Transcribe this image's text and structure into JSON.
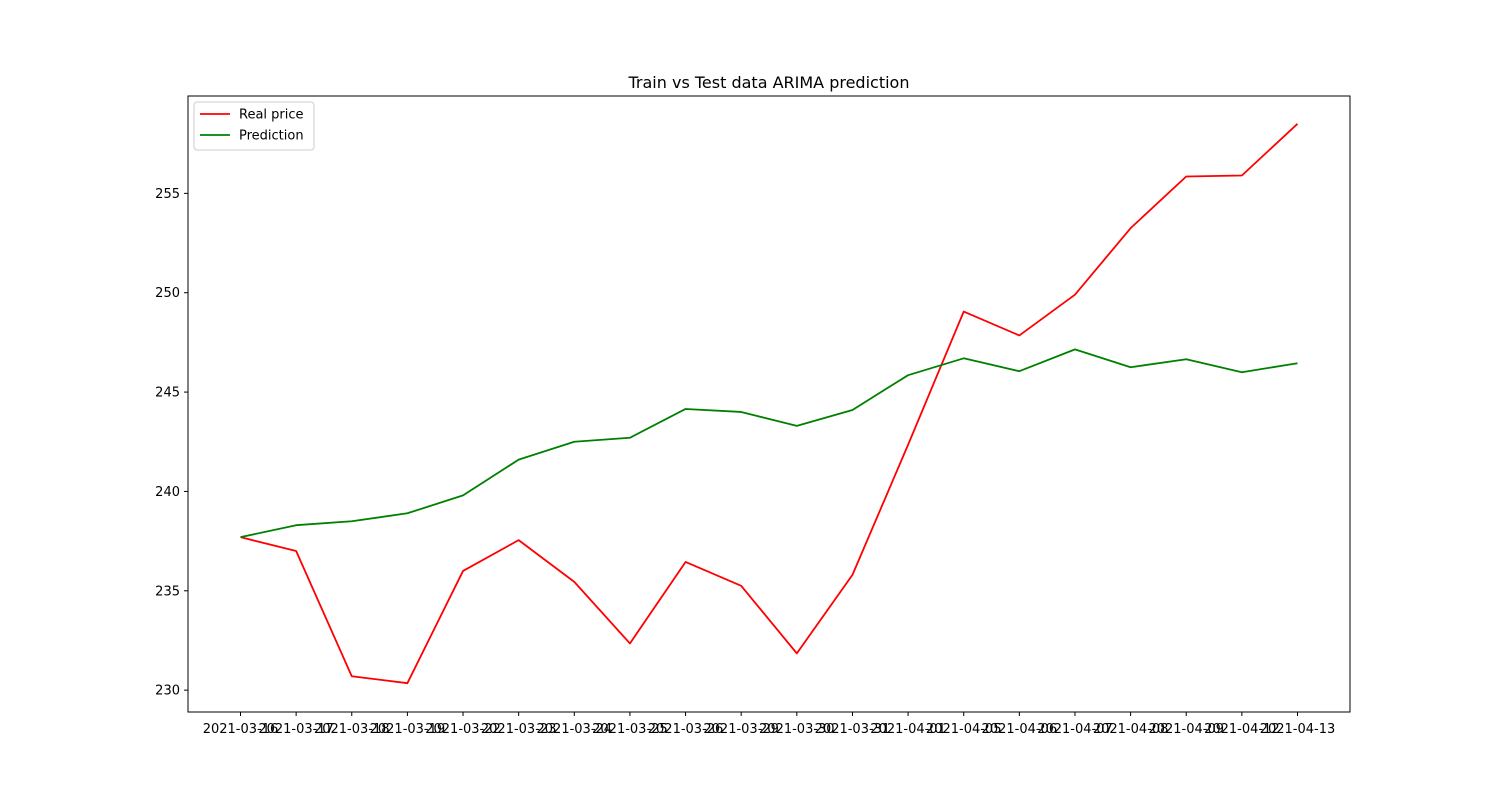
{
  "chart_data": {
    "type": "line",
    "title": "Train vs Test data ARIMA prediction",
    "xlabel": "",
    "ylabel": "",
    "x": [
      "2021-03-16",
      "2021-03-17",
      "2021-03-18",
      "2021-03-19",
      "2021-03-22",
      "2021-03-23",
      "2021-03-24",
      "2021-03-25",
      "2021-03-26",
      "2021-03-29",
      "2021-03-30",
      "2021-03-31",
      "2021-04-01",
      "2021-04-05",
      "2021-04-06",
      "2021-04-07",
      "2021-04-08",
      "2021-04-09",
      "2021-04-12",
      "2021-04-13"
    ],
    "series": [
      {
        "name": "Real price",
        "color": "#ff0000",
        "values": [
          237.7,
          237.0,
          230.7,
          230.35,
          236.0,
          237.55,
          235.45,
          232.35,
          236.45,
          235.25,
          231.85,
          235.8,
          242.35,
          249.05,
          247.85,
          249.9,
          253.25,
          255.85,
          255.9,
          258.5
        ]
      },
      {
        "name": "Prediction",
        "color": "#008000",
        "values": [
          237.7,
          238.3,
          238.5,
          238.9,
          239.8,
          241.6,
          242.5,
          242.7,
          244.15,
          244.0,
          243.3,
          244.1,
          245.85,
          246.7,
          246.05,
          247.15,
          246.25,
          246.65,
          246.0,
          246.45
        ]
      }
    ],
    "yticks": [
      230,
      235,
      240,
      245,
      250,
      255
    ],
    "ylim": [
      228.9,
      259.9
    ],
    "grid": false,
    "legend": "top-left"
  }
}
